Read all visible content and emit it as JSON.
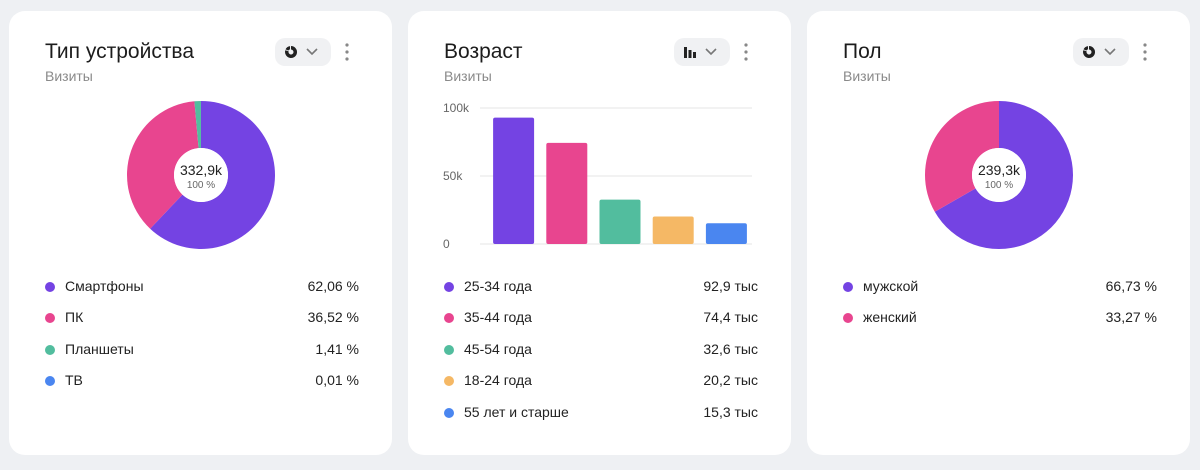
{
  "cards": [
    {
      "title": "Тип устройства",
      "subtitle": "Визиты",
      "chart_type_icon": "donut-icon",
      "center_value": "332,9k",
      "center_pct": "100 %",
      "legend": [
        {
          "label": "Смартфоны",
          "value": "62,06 %"
        },
        {
          "label": "ПК",
          "value": "36,52 %"
        },
        {
          "label": "Планшеты",
          "value": "1,41 %"
        },
        {
          "label": "ТВ",
          "value": "0,01 %"
        }
      ]
    },
    {
      "title": "Возраст",
      "subtitle": "Визиты",
      "chart_type_icon": "bar-chart-icon",
      "legend": [
        {
          "label": "25-34 года",
          "value": "92,9 тыс"
        },
        {
          "label": "35-44 года",
          "value": "74,4 тыс"
        },
        {
          "label": "45-54 года",
          "value": "32,6 тыс"
        },
        {
          "label": "18-24 года",
          "value": "20,2 тыс"
        },
        {
          "label": "55 лет и старше",
          "value": "15,3 тыс"
        }
      ]
    },
    {
      "title": "Пол",
      "subtitle": "Визиты",
      "chart_type_icon": "donut-icon",
      "center_value": "239,3k",
      "center_pct": "100 %",
      "legend": [
        {
          "label": "мужской",
          "value": "66,73 %"
        },
        {
          "label": "женский",
          "value": "33,27 %"
        }
      ]
    }
  ],
  "chart_data": [
    {
      "type": "pie",
      "title": "Тип устройства",
      "subtitle": "Визиты",
      "total": "332,9k",
      "categories": [
        "Смартфоны",
        "ПК",
        "Планшеты",
        "ТВ"
      ],
      "values": [
        62.06,
        36.52,
        1.41,
        0.01
      ],
      "colors": [
        "#7443e3",
        "#e8458f",
        "#52bd9e",
        "#4a86f0"
      ]
    },
    {
      "type": "bar",
      "title": "Возраст",
      "subtitle": "Визиты",
      "categories": [
        "25-34 года",
        "35-44 года",
        "45-54 года",
        "18-24 года",
        "55 лет и старше"
      ],
      "values": [
        92.9,
        74.4,
        32.6,
        20.2,
        15.3
      ],
      "colors": [
        "#7443e3",
        "#e8458f",
        "#52bd9e",
        "#f5b865",
        "#4a86f0"
      ],
      "yticks": [
        "0",
        "50k",
        "100k"
      ],
      "ytick_values": [
        0,
        50,
        100
      ],
      "ylim": [
        0,
        100
      ],
      "grid": true
    },
    {
      "type": "pie",
      "title": "Пол",
      "subtitle": "Визиты",
      "total": "239,3k",
      "categories": [
        "мужской",
        "женский"
      ],
      "values": [
        66.73,
        33.27
      ],
      "colors": [
        "#7443e3",
        "#e8458f"
      ]
    }
  ]
}
